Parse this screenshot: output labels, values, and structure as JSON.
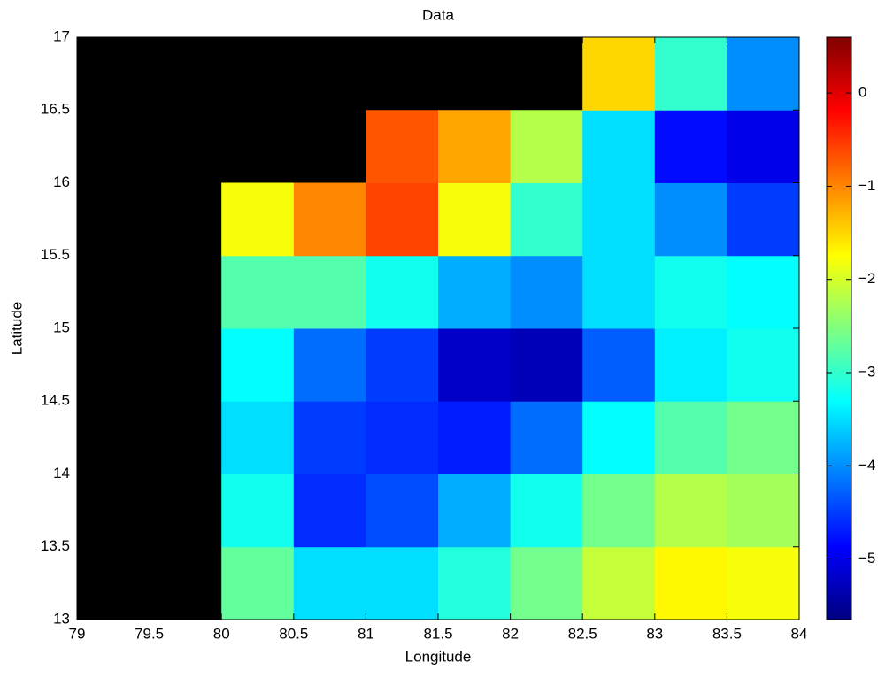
{
  "chart_data": {
    "type": "heatmap",
    "title": "Data",
    "x_label": "Longitude",
    "y_label": "Latitude",
    "x": [
      79.25,
      79.75,
      80.25,
      80.75,
      81.25,
      81.75,
      82.25,
      82.75,
      83.25,
      83.75
    ],
    "y": [
      13.25,
      13.75,
      14.25,
      14.75,
      15.25,
      15.75,
      16.25,
      16.75
    ],
    "values": [
      [
        null,
        null,
        -2.7,
        -3.5,
        -3.5,
        -3.1,
        -2.6,
        -2.1,
        -1.7,
        -1.8
      ],
      [
        null,
        null,
        -3.2,
        -4.6,
        -4.4,
        -3.8,
        -3.2,
        -2.6,
        -2.2,
        -2.3
      ],
      [
        null,
        null,
        -3.5,
        -4.5,
        -4.6,
        -4.7,
        -4.2,
        -3.3,
        -2.8,
        -2.6
      ],
      [
        null,
        null,
        -3.3,
        -4.2,
        -4.5,
        -5.2,
        -5.3,
        -4.3,
        -3.4,
        -3.2
      ],
      [
        null,
        null,
        -2.8,
        -2.8,
        -3.2,
        -3.8,
        -4.0,
        -3.5,
        -3.2,
        -3.3
      ],
      [
        null,
        null,
        -1.8,
        -1.0,
        -0.6,
        -1.8,
        -3.0,
        -3.5,
        -4.0,
        -4.5
      ],
      [
        null,
        null,
        null,
        null,
        -0.7,
        -1.2,
        -2.2,
        -3.5,
        -4.8,
        -5.0
      ],
      [
        null,
        null,
        null,
        null,
        null,
        null,
        null,
        -1.5,
        -3.0,
        -4.0
      ]
    ],
    "null_color": "#000000",
    "colormap": "jet",
    "xlim": [
      79,
      84
    ],
    "ylim": [
      13,
      17
    ],
    "xticks": [
      79,
      79.5,
      80,
      80.5,
      81,
      81.5,
      82,
      82.5,
      83,
      83.5,
      84
    ],
    "yticks": [
      13,
      13.5,
      14,
      14.5,
      15,
      15.5,
      16,
      16.5,
      17
    ],
    "clim": [
      -5.65,
      0.6
    ],
    "cticks": [
      {
        "value": -5,
        "label": "−5"
      },
      {
        "value": -4,
        "label": "−4"
      },
      {
        "value": -3,
        "label": "−3"
      },
      {
        "value": -2,
        "label": "−2"
      },
      {
        "value": -1,
        "label": "−1"
      },
      0
    ]
  }
}
